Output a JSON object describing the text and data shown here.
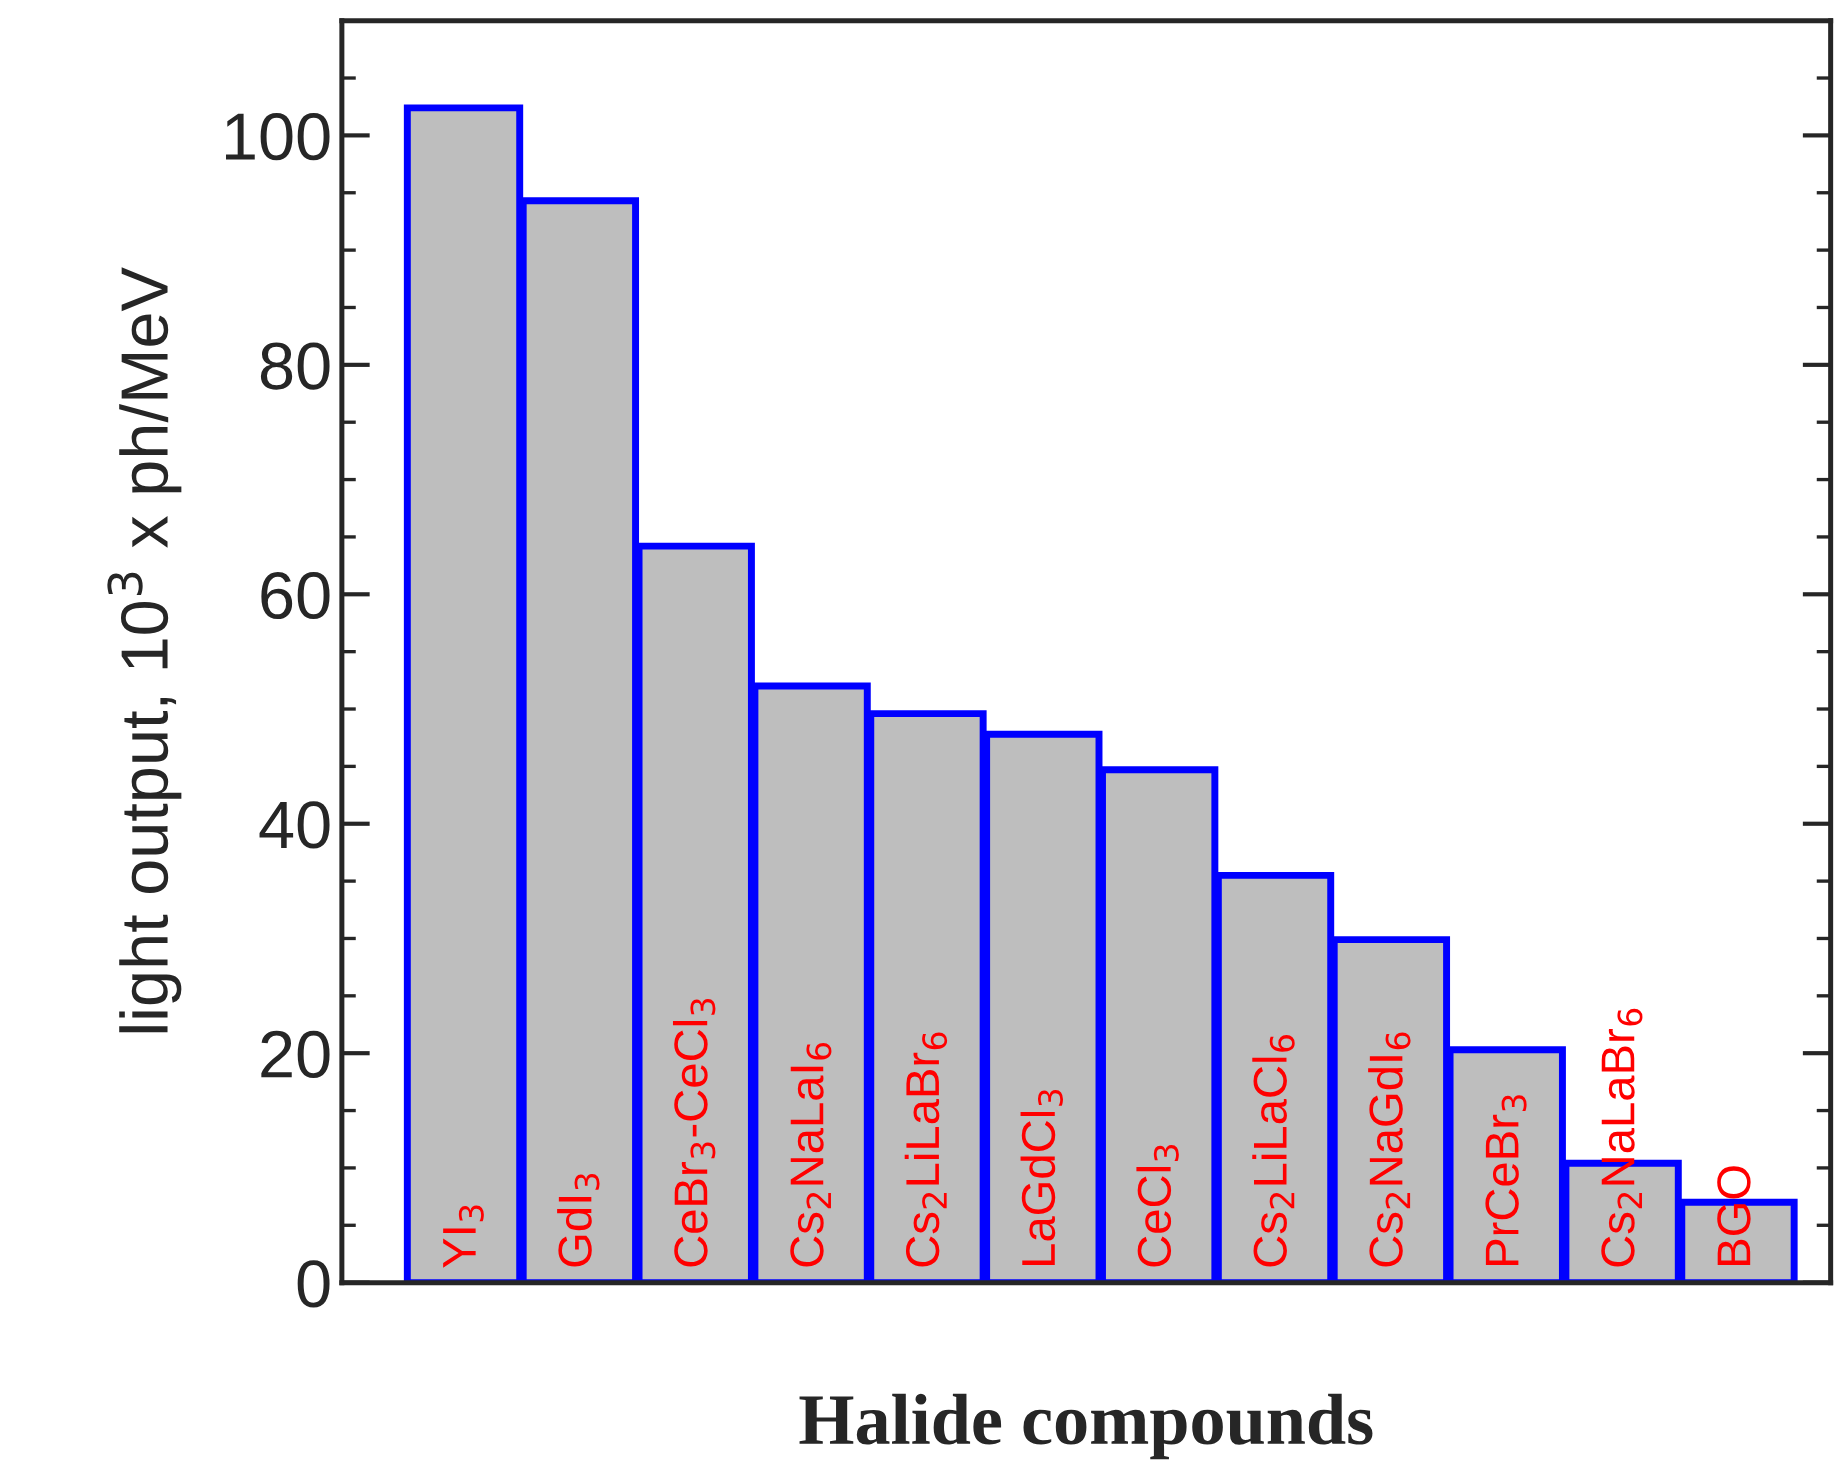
{
  "chart_data": {
    "type": "bar",
    "xlabel": "Halide compounds",
    "ylabel": "light output, 10$^{3}$ x ph/MeV",
    "categories": [
      "YI$_{3}$",
      "GdI$_{3}$",
      "CeBr$_{3}$-CeCl$_{3}$",
      "Cs$_{2}$NaLaI$_{6}$",
      "Cs$_{2}$LiLaBr$_{6}$",
      "LaGdCl$_{3}$",
      "CeCl$_{3}$",
      "Cs$_{2}$LiLaCl$_{6}$",
      "Cs$_{2}$NaGdI$_{6}$",
      "PrCeBr$_{3}$",
      "Cs$_{2}$NaLaBr$_{6}$",
      "BGO"
    ],
    "values": [
      102.4,
      94.3,
      64.2,
      52.0,
      49.6,
      47.8,
      44.7,
      35.5,
      29.9,
      20.3,
      10.4,
      7.0
    ],
    "color": "#bebebe",
    "ylim": [
      0,
      110
    ],
    "yticks": [
      0,
      20,
      40,
      60,
      80,
      100
    ],
    "grid": false,
    "legend": false
  }
}
